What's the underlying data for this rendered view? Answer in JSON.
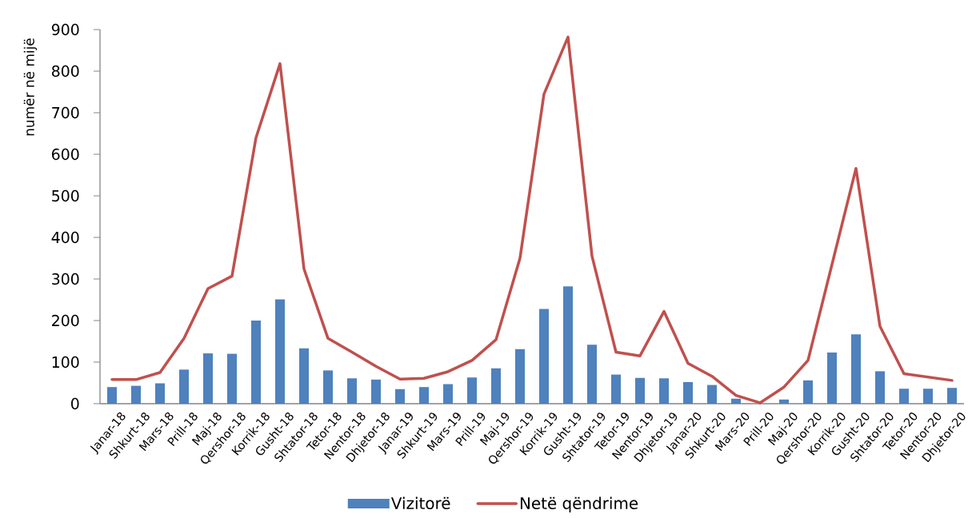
{
  "chart_data": {
    "type": "bar",
    "ylabel": "numër në mijë",
    "categories": [
      "Janar-18",
      "Shkurt-18",
      "Mars-18",
      "Prill-18",
      "Maj-18",
      "Qershor-18",
      "Korrik-18",
      "Gusht-18",
      "Shtator-18",
      "Tetor-18",
      "Nentor-18",
      "Dhjetor-18",
      "Janar-19",
      "Shkurt-19",
      "Mars-19",
      "Prill-19",
      "Maj-19",
      "Qershor-19",
      "Korrik-19",
      "Gusht-19",
      "Shtator-19",
      "Tetor-19",
      "Nentor-19",
      "Dhjetor-19",
      "Janar-20",
      "Shkurt-20",
      "Mars-20",
      "Prill-20",
      "Maj-20",
      "Qershor-20",
      "Korrik-20",
      "Gusht-20",
      "Shtator-20",
      "Tetor-20",
      "Nentor-20",
      "Dhjetor-20"
    ],
    "series": [
      {
        "name": "Vizitorë",
        "color": "#4f81bd",
        "values": [
          40,
          43,
          49,
          82,
          121,
          120,
          200,
          251,
          133,
          80,
          61,
          58,
          35,
          40,
          47,
          63,
          85,
          131,
          228,
          282,
          142,
          70,
          62,
          61,
          52,
          45,
          12,
          0,
          10,
          56,
          123,
          167,
          78,
          36,
          36,
          38
        ]
      },
      {
        "name": "Netë qëndrime",
        "type": "line",
        "color": "#c0504d",
        "values": [
          58,
          58,
          75,
          157,
          277,
          307,
          640,
          818,
          324,
          157,
          124,
          90,
          59,
          61,
          77,
          104,
          154,
          350,
          745,
          882,
          355,
          124,
          115,
          222,
          97,
          66,
          20,
          2,
          40,
          104,
          335,
          566,
          186,
          72,
          64,
          56
        ]
      }
    ],
    "ylim": [
      0,
      900
    ],
    "yticks": [
      0,
      100,
      200,
      300,
      400,
      500,
      600,
      700,
      800,
      900
    ],
    "legend": "bottom"
  }
}
